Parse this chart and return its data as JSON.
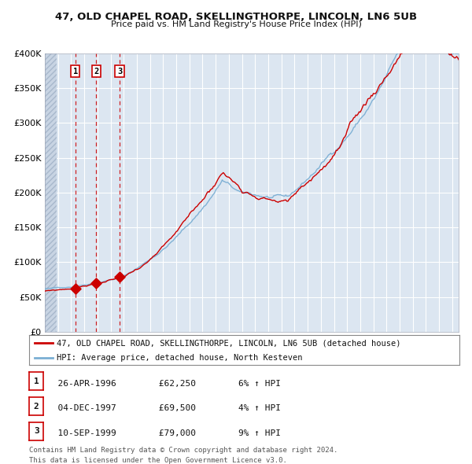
{
  "title": "47, OLD CHAPEL ROAD, SKELLINGTHORPE, LINCOLN, LN6 5UB",
  "subtitle": "Price paid vs. HM Land Registry's House Price Index (HPI)",
  "legend_red": "47, OLD CHAPEL ROAD, SKELLINGTHORPE, LINCOLN, LN6 5UB (detached house)",
  "legend_blue": "HPI: Average price, detached house, North Kesteven",
  "footer1": "Contains HM Land Registry data © Crown copyright and database right 2024.",
  "footer2": "This data is licensed under the Open Government Licence v3.0.",
  "transactions": [
    {
      "num": 1,
      "date": "26-APR-1996",
      "price": 62250,
      "year": 1996.32,
      "pct": "6%",
      "dir": "↑"
    },
    {
      "num": 2,
      "date": "04-DEC-1997",
      "price": 69500,
      "year": 1997.92,
      "pct": "4%",
      "dir": "↑"
    },
    {
      "num": 3,
      "date": "10-SEP-1999",
      "price": 79000,
      "year": 1999.69,
      "pct": "9%",
      "dir": "↑"
    }
  ],
  "bg_color": "#dce6f1",
  "red_color": "#cc0000",
  "blue_color": "#7bafd4",
  "grid_color": "#ffffff",
  "ylim": [
    0,
    400000
  ],
  "yticks": [
    0,
    50000,
    100000,
    150000,
    200000,
    250000,
    300000,
    350000,
    400000
  ],
  "xlim_start": 1994.0,
  "xlim_end": 2025.5,
  "hatch_end": 1994.92
}
